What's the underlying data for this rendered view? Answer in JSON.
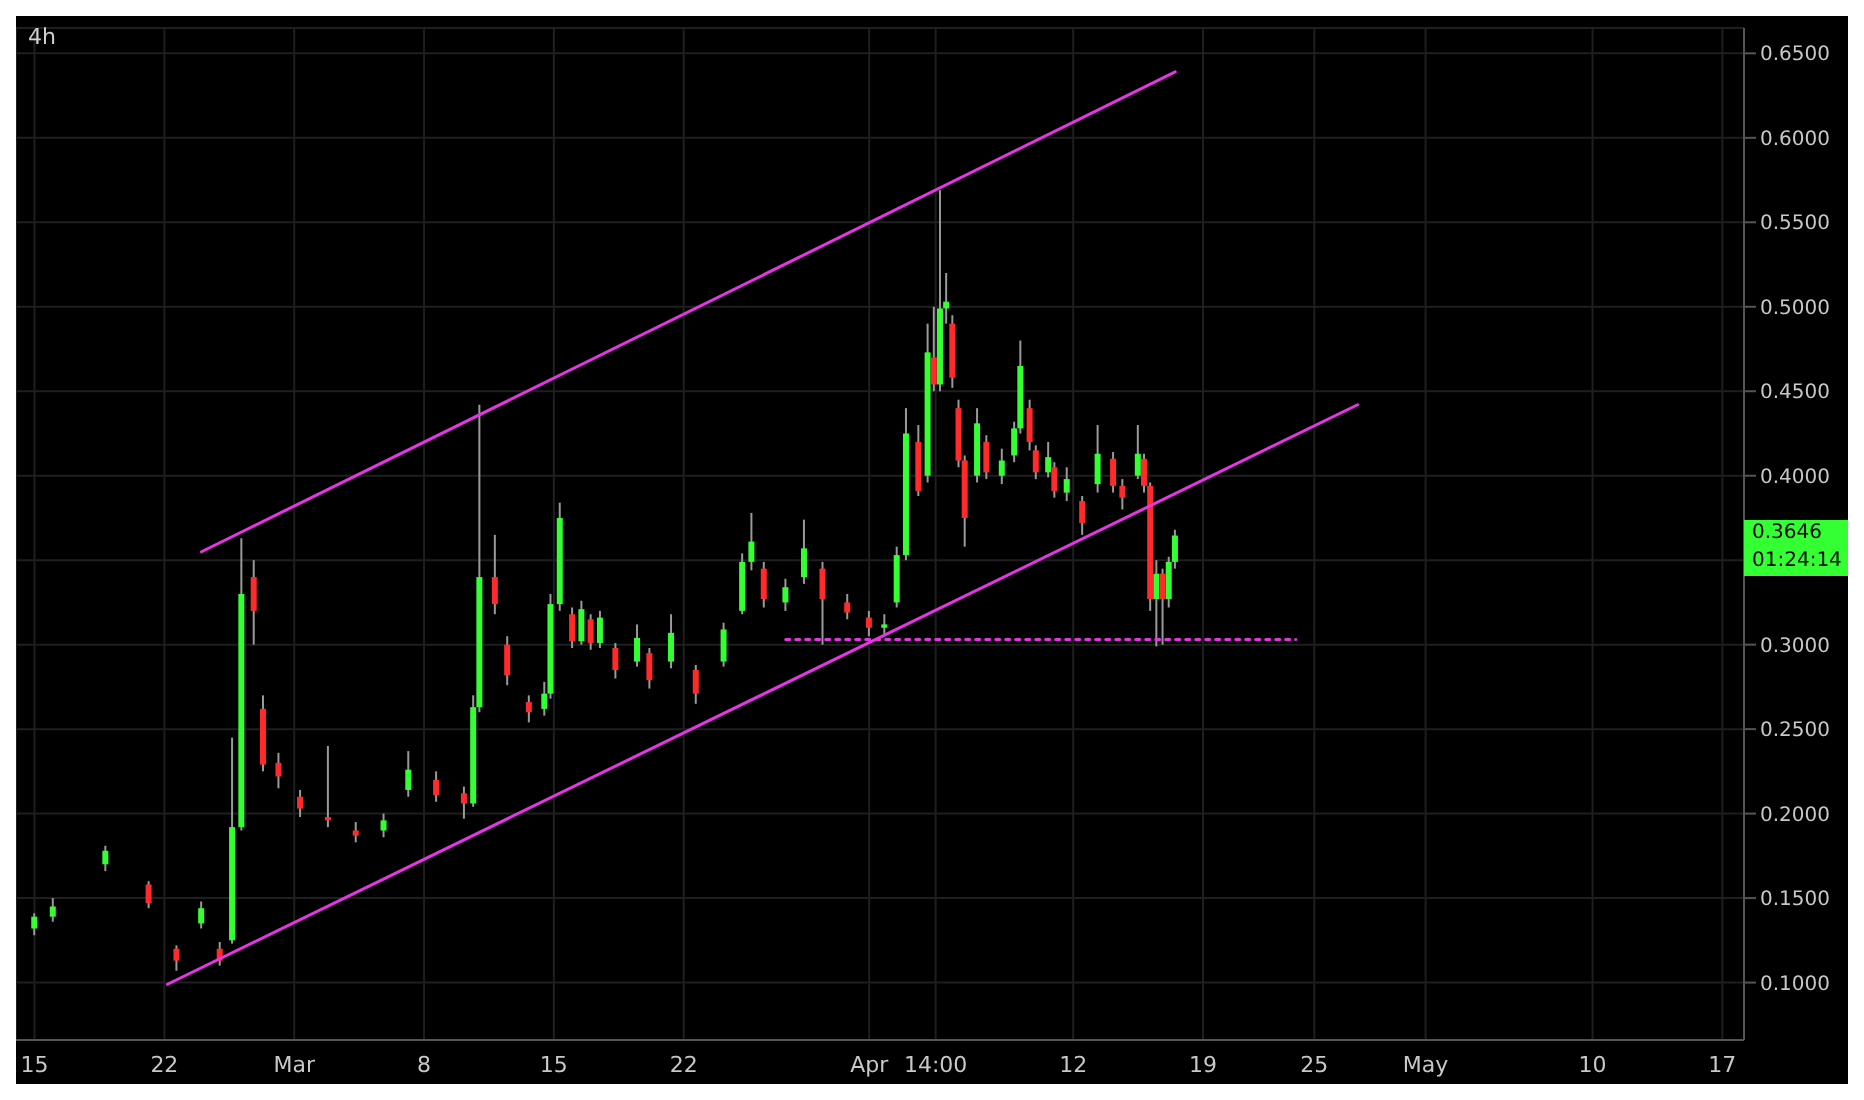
{
  "chart_data": {
    "type": "candlestick",
    "title": "4h",
    "x": [
      "--02-15T00:00",
      "--02-16T00:00",
      "--02-18T20:00",
      "--02-21T04:00",
      "--02-22T16:00",
      "--02-24T00:00",
      "--02-25T00:00",
      "--02-25T16:00",
      "--02-26T04:00",
      "--02-26T20:00",
      "--02-27T08:00",
      "--02-28T04:00",
      "--03-01T08:00",
      "--03-02T20:00",
      "--03-04T08:00",
      "--03-05T20:00",
      "--03-07T04:00",
      "--03-08T16:00",
      "--03-10T04:00",
      "--03-10T16:00",
      "--03-11T00:00",
      "--03-11T20:00",
      "--03-12T12:00",
      "--03-13T16:00",
      "--03-14T12:00",
      "--03-14T20:00",
      "--03-15T08:00",
      "--03-16T00:00",
      "--03-16T12:00",
      "--03-17T00:00",
      "--03-17T12:00",
      "--03-18T08:00",
      "--03-19T12:00",
      "--03-20T04:00",
      "--03-21T08:00",
      "--03-22T16:00",
      "--03-24T04:00",
      "--03-25T04:00",
      "--03-25T16:00",
      "--03-26T08:00",
      "--03-27T12:00",
      "--03-28T12:00",
      "--03-29T12:00",
      "--03-30T20:00",
      "--04-01T00:00",
      "--04-01T20:00",
      "--04-02T12:00",
      "--04-03T00:00",
      "--04-03T16:00",
      "--04-04T04:00",
      "--04-04T12:00",
      "--04-04T20:00",
      "--04-05T04:00",
      "--04-05T12:00",
      "--04-05T20:00",
      "--04-06T04:00",
      "--04-06T20:00",
      "--04-07T08:00",
      "--04-08T04:00",
      "--04-08T20:00",
      "--04-09T04:00",
      "--04-09T16:00",
      "--04-10T00:00",
      "--04-10T16:00",
      "--04-11T00:00",
      "--04-11T16:00",
      "--04-12T12:00",
      "--04-13T08:00",
      "--04-14T04:00",
      "--04-14T16:00",
      "--04-15T12:00",
      "--04-15T20:00",
      "--04-16T04:00",
      "--04-16T12:00",
      "--04-16T20:00",
      "--04-17T04:00",
      "--04-17T12:00"
    ],
    "ohlc": [
      [
        0.132,
        0.141,
        0.128,
        0.139
      ],
      [
        0.139,
        0.15,
        0.136,
        0.145
      ],
      [
        0.17,
        0.181,
        0.166,
        0.178
      ],
      [
        0.158,
        0.16,
        0.144,
        0.147
      ],
      [
        0.12,
        0.122,
        0.107,
        0.113
      ],
      [
        0.135,
        0.148,
        0.132,
        0.144
      ],
      [
        0.12,
        0.124,
        0.11,
        0.113
      ],
      [
        0.125,
        0.245,
        0.123,
        0.192
      ],
      [
        0.192,
        0.363,
        0.19,
        0.33
      ],
      [
        0.34,
        0.35,
        0.3,
        0.32
      ],
      [
        0.262,
        0.27,
        0.225,
        0.229
      ],
      [
        0.23,
        0.236,
        0.215,
        0.222
      ],
      [
        0.21,
        0.214,
        0.198,
        0.203
      ],
      [
        0.198,
        0.24,
        0.192,
        0.196
      ],
      [
        0.19,
        0.195,
        0.183,
        0.187
      ],
      [
        0.19,
        0.2,
        0.186,
        0.196
      ],
      [
        0.214,
        0.237,
        0.21,
        0.226
      ],
      [
        0.22,
        0.225,
        0.207,
        0.211
      ],
      [
        0.212,
        0.216,
        0.197,
        0.206
      ],
      [
        0.206,
        0.27,
        0.204,
        0.263
      ],
      [
        0.263,
        0.442,
        0.26,
        0.34
      ],
      [
        0.34,
        0.365,
        0.318,
        0.324
      ],
      [
        0.3,
        0.305,
        0.276,
        0.282
      ],
      [
        0.266,
        0.27,
        0.254,
        0.26
      ],
      [
        0.262,
        0.278,
        0.258,
        0.271
      ],
      [
        0.271,
        0.33,
        0.268,
        0.324
      ],
      [
        0.324,
        0.384,
        0.32,
        0.375
      ],
      [
        0.318,
        0.322,
        0.298,
        0.302
      ],
      [
        0.302,
        0.326,
        0.3,
        0.321
      ],
      [
        0.315,
        0.318,
        0.297,
        0.301
      ],
      [
        0.301,
        0.32,
        0.298,
        0.316
      ],
      [
        0.298,
        0.301,
        0.28,
        0.285
      ],
      [
        0.29,
        0.312,
        0.287,
        0.304
      ],
      [
        0.295,
        0.298,
        0.274,
        0.279
      ],
      [
        0.29,
        0.318,
        0.286,
        0.307
      ],
      [
        0.285,
        0.288,
        0.265,
        0.271
      ],
      [
        0.29,
        0.313,
        0.287,
        0.309
      ],
      [
        0.32,
        0.354,
        0.318,
        0.349
      ],
      [
        0.349,
        0.378,
        0.344,
        0.361
      ],
      [
        0.345,
        0.349,
        0.322,
        0.327
      ],
      [
        0.325,
        0.339,
        0.32,
        0.334
      ],
      [
        0.34,
        0.374,
        0.336,
        0.357
      ],
      [
        0.345,
        0.349,
        0.3,
        0.327
      ],
      [
        0.325,
        0.33,
        0.315,
        0.319
      ],
      [
        0.316,
        0.32,
        0.305,
        0.31
      ],
      [
        0.31,
        0.318,
        0.306,
        0.312
      ],
      [
        0.325,
        0.358,
        0.322,
        0.353
      ],
      [
        0.353,
        0.44,
        0.35,
        0.425
      ],
      [
        0.42,
        0.43,
        0.388,
        0.391
      ],
      [
        0.4,
        0.49,
        0.396,
        0.473
      ],
      [
        0.47,
        0.5,
        0.45,
        0.454
      ],
      [
        0.454,
        0.569,
        0.45,
        0.499
      ],
      [
        0.499,
        0.52,
        0.49,
        0.503
      ],
      [
        0.49,
        0.495,
        0.452,
        0.458
      ],
      [
        0.44,
        0.445,
        0.405,
        0.409
      ],
      [
        0.409,
        0.412,
        0.358,
        0.375
      ],
      [
        0.4,
        0.44,
        0.396,
        0.431
      ],
      [
        0.42,
        0.424,
        0.398,
        0.402
      ],
      [
        0.4,
        0.416,
        0.395,
        0.409
      ],
      [
        0.412,
        0.432,
        0.408,
        0.428
      ],
      [
        0.428,
        0.48,
        0.425,
        0.465
      ],
      [
        0.44,
        0.445,
        0.415,
        0.42
      ],
      [
        0.415,
        0.418,
        0.398,
        0.402
      ],
      [
        0.402,
        0.42,
        0.399,
        0.411
      ],
      [
        0.405,
        0.408,
        0.387,
        0.391
      ],
      [
        0.39,
        0.405,
        0.385,
        0.398
      ],
      [
        0.385,
        0.388,
        0.365,
        0.372
      ],
      [
        0.395,
        0.43,
        0.39,
        0.413
      ],
      [
        0.41,
        0.414,
        0.39,
        0.394
      ],
      [
        0.394,
        0.398,
        0.38,
        0.387
      ],
      [
        0.4,
        0.43,
        0.398,
        0.413
      ],
      [
        0.41,
        0.413,
        0.39,
        0.394
      ],
      [
        0.394,
        0.396,
        0.32,
        0.327
      ],
      [
        0.327,
        0.35,
        0.299,
        0.342
      ],
      [
        0.342,
        0.345,
        0.3,
        0.327
      ],
      [
        0.327,
        0.352,
        0.322,
        0.349
      ],
      [
        0.349,
        0.368,
        0.345,
        0.3646
      ]
    ],
    "colors": [
      "#33ff33",
      "#33ff33",
      "#33ff33",
      "#ff2a2a",
      "#ff2a2a",
      "#33ff33",
      "#ff2a2a",
      "#33ff33",
      "#33ff33",
      "#ff2a2a",
      "#ff2a2a",
      "#ff2a2a",
      "#ff2a2a",
      "#ff2a2a",
      "#ff2a2a",
      "#33ff33",
      "#33ff33",
      "#ff2a2a",
      "#ff2a2a",
      "#33ff33",
      "#33ff33",
      "#ff2a2a",
      "#ff2a2a",
      "#ff2a2a",
      "#33ff33",
      "#33ff33",
      "#33ff33",
      "#ff2a2a",
      "#33ff33",
      "#ff2a2a",
      "#33ff33",
      "#ff2a2a",
      "#33ff33",
      "#ff2a2a",
      "#33ff33",
      "#ff2a2a",
      "#33ff33",
      "#33ff33",
      "#33ff33",
      "#ff2a2a",
      "#33ff33",
      "#33ff33",
      "#ff2a2a",
      "#ff2a2a",
      "#ff2a2a",
      "#33ff33",
      "#33ff33",
      "#33ff33",
      "#ff2a2a",
      "#33ff33",
      "#ff2a2a",
      "#33ff33",
      "#33ff33",
      "#ff2a2a",
      "#ff2a2a",
      "#ff2a2a",
      "#33ff33",
      "#ff2a2a",
      "#33ff33",
      "#33ff33",
      "#33ff33",
      "#ff2a2a",
      "#ff2a2a",
      "#33ff33",
      "#ff2a2a",
      "#33ff33",
      "#ff2a2a",
      "#33ff33",
      "#ff2a2a",
      "#ff2a2a",
      "#33ff33",
      "#ff2a2a",
      "#ff2a2a",
      "#33ff33",
      "#ff2a2a",
      "#33ff33",
      "#33ff33"
    ],
    "series": [
      {
        "type": "line",
        "color": "#e535e5",
        "x": [
          "--02-24T00:00",
          "--04-17T12:00"
        ],
        "values": [
          0.355,
          0.639
        ]
      },
      {
        "type": "line",
        "color": "#e535e5",
        "x": [
          "--02-22T04:00",
          "--04-27T08:00"
        ],
        "values": [
          0.099,
          0.442
        ]
      },
      {
        "type": "line",
        "color": "#e535e5",
        "line_style": "dotted",
        "x": [
          "--03-27T12:00",
          "--04-24T00:00"
        ],
        "values": [
          0.303,
          0.303
        ]
      }
    ],
    "xlim": [
      "--02-14T00:00",
      "--05-18T04:00"
    ],
    "xticks": [
      {
        "value": "--02-15",
        "label": "15"
      },
      {
        "value": "--02-22",
        "label": "22"
      },
      {
        "value": "--03-01",
        "label": "Mar"
      },
      {
        "value": "--03-08",
        "label": "8"
      },
      {
        "value": "--03-15",
        "label": "15"
      },
      {
        "value": "--03-22",
        "label": "22"
      },
      {
        "value": "--04-01",
        "label": "Apr"
      },
      {
        "value": "--04-04T14:00",
        "label": "14:00"
      },
      {
        "value": "--04-12",
        "label": "12"
      },
      {
        "value": "--04-19",
        "label": "19"
      },
      {
        "value": "--04-25",
        "label": "25"
      },
      {
        "value": "--05-01",
        "label": "May"
      },
      {
        "value": "--05-10",
        "label": "10"
      },
      {
        "value": "--05-17",
        "label": "17"
      }
    ],
    "ylim": [
      0.066,
      0.665
    ],
    "yticks": [
      {
        "value": 0.1,
        "label": "0.1000"
      },
      {
        "value": 0.15,
        "label": "0.1500"
      },
      {
        "value": 0.2,
        "label": "0.2000"
      },
      {
        "value": 0.25,
        "label": "0.2500"
      },
      {
        "value": 0.3,
        "label": "0.3000"
      },
      {
        "value": 0.35,
        "label": null
      },
      {
        "value": 0.4,
        "label": "0.4000"
      },
      {
        "value": 0.45,
        "label": "0.4500"
      },
      {
        "value": 0.5,
        "label": "0.5000"
      },
      {
        "value": 0.55,
        "label": "0.5500"
      },
      {
        "value": 0.6,
        "label": "0.6000"
      },
      {
        "value": 0.65,
        "label": "0.6500"
      }
    ],
    "grid": true,
    "annotations": [
      "0.3646",
      "01:24:14"
    ]
  }
}
